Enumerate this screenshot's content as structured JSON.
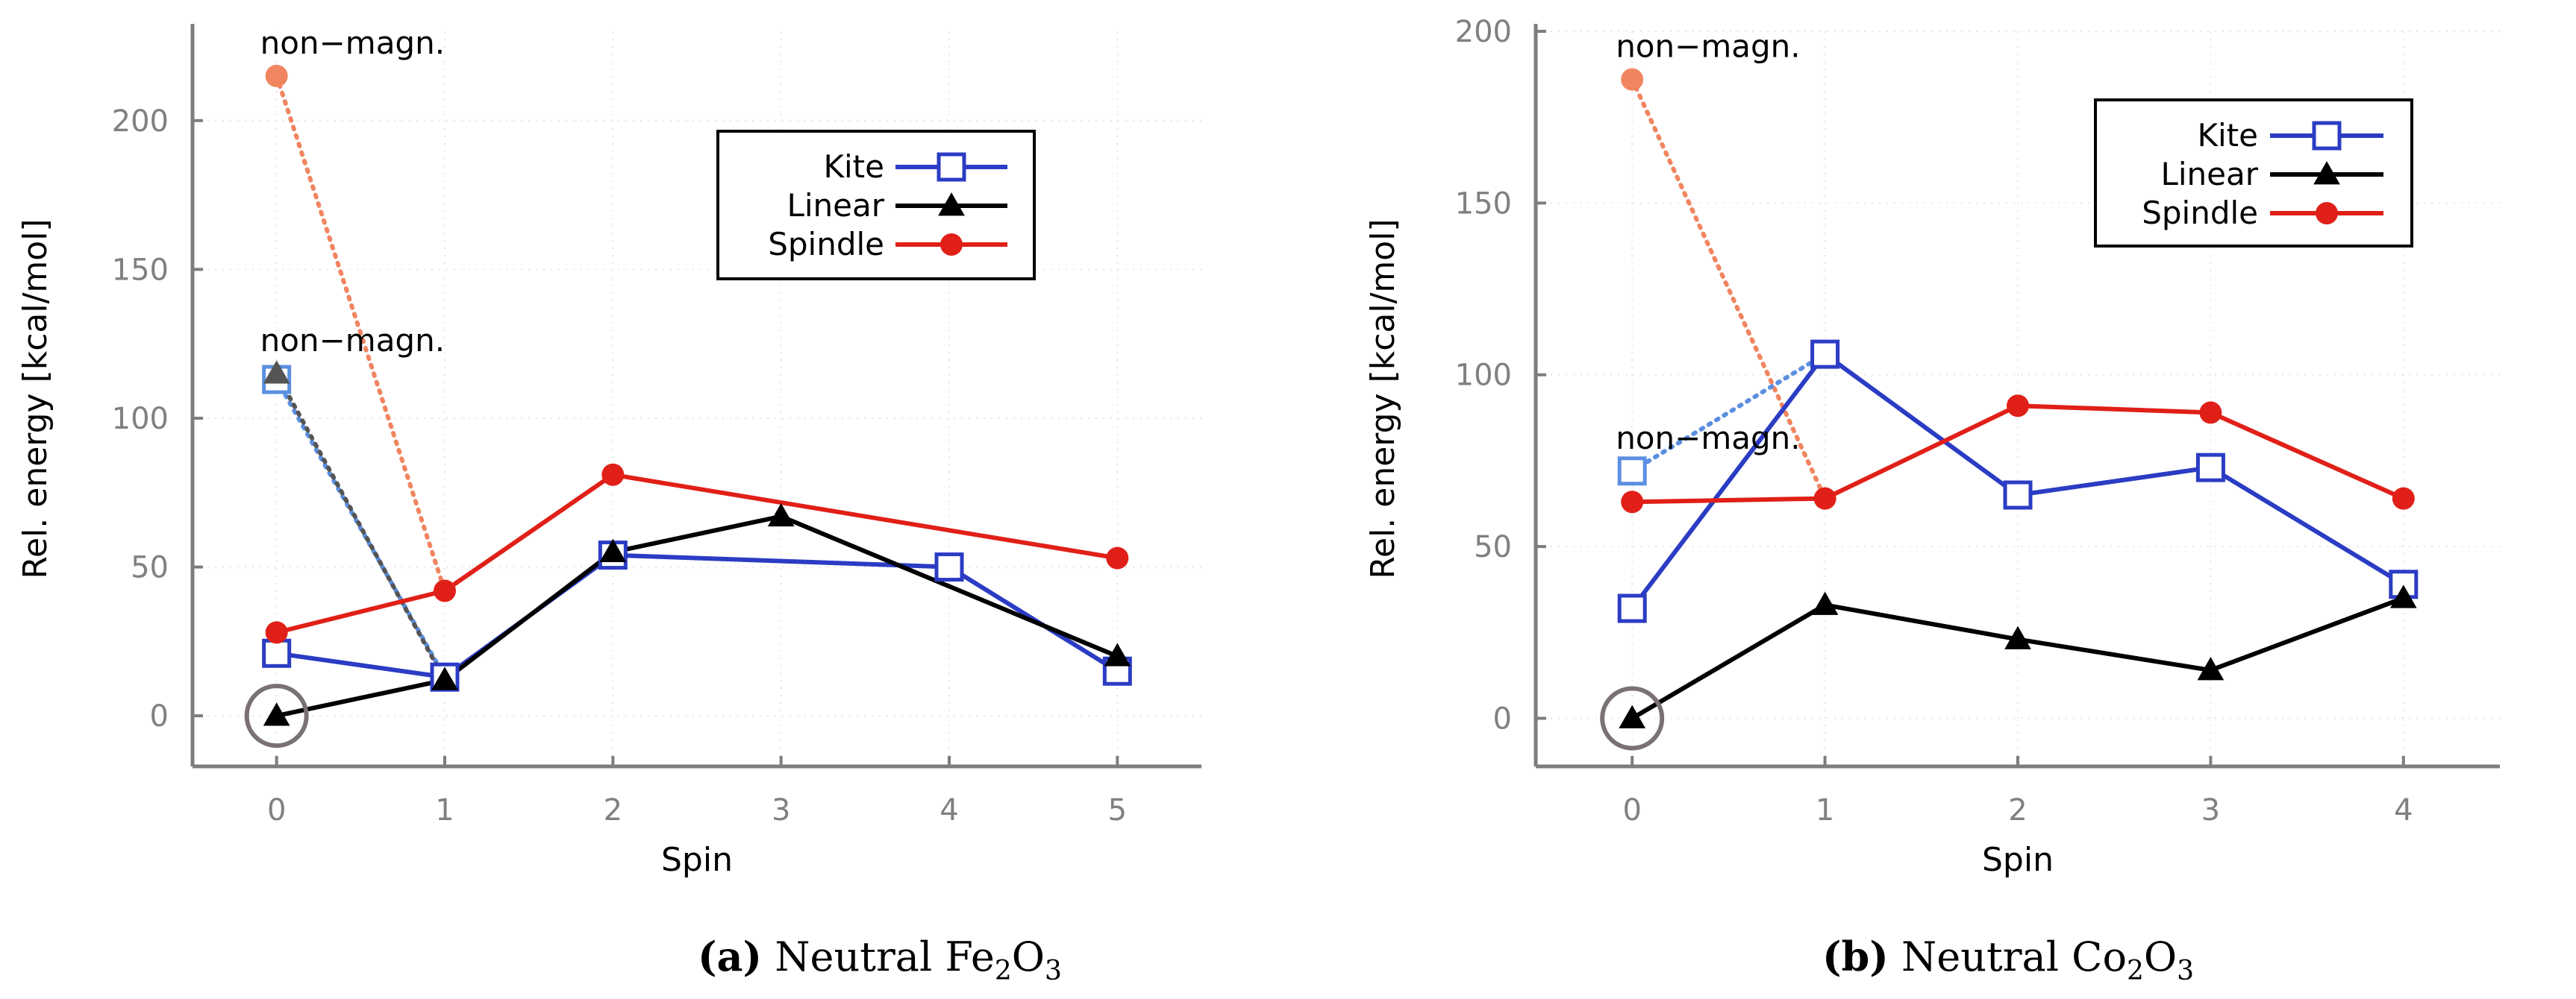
{
  "chart_data": [
    {
      "id": "a",
      "type": "line",
      "caption_label": "(a)",
      "caption_text": "Neutral Fe",
      "caption_parts": [
        "2",
        "O",
        "3"
      ],
      "xlabel": "Spin",
      "ylabel": "Rel. energy [kcal/mol]",
      "xlim": [
        -0.5,
        5.5
      ],
      "ylim": [
        -17,
        230
      ],
      "xticks": [
        0,
        1,
        2,
        3,
        4,
        5
      ],
      "yticks": [
        0,
        50,
        100,
        150,
        200
      ],
      "legend_position": "top-right",
      "series": [
        {
          "name": "Kite",
          "color": "#2b3cc4",
          "marker": "square",
          "points": [
            [
              0,
              21
            ],
            [
              1,
              13
            ],
            [
              2,
              54
            ],
            [
              4,
              50
            ],
            [
              5,
              15
            ]
          ]
        },
        {
          "name": "Linear",
          "color": "#000000",
          "marker": "triangle",
          "points": [
            [
              0,
              0
            ],
            [
              1,
              12
            ],
            [
              2,
              55
            ],
            [
              3,
              67
            ],
            [
              5,
              20
            ]
          ]
        },
        {
          "name": "Spindle",
          "color": "#e02018",
          "marker": "circle",
          "points": [
            [
              0,
              28
            ],
            [
              1,
              42
            ],
            [
              2,
              81
            ],
            [
              5,
              53
            ]
          ]
        }
      ],
      "nonmagnetic": [
        {
          "color": "#f08560",
          "marker": "circle",
          "from": [
            0,
            215
          ],
          "to": [
            1,
            42
          ]
        },
        {
          "color": "#5b8fe0",
          "marker": "square",
          "from": [
            0,
            113
          ],
          "to": [
            1,
            13
          ]
        },
        {
          "color": "#555555",
          "marker": "triangle",
          "from": [
            0,
            115
          ],
          "to": [
            1,
            12
          ]
        }
      ],
      "annotations": [
        {
          "text": "non−magn.",
          "x": 0,
          "y": 215
        },
        {
          "text": "non−magn.",
          "x": 0,
          "y": 115
        }
      ],
      "highlight": {
        "x": 0,
        "y": 0,
        "color": "#7a7272"
      }
    },
    {
      "id": "b",
      "type": "line",
      "caption_label": "(b)",
      "caption_text": "Neutral Co",
      "caption_parts": [
        "2",
        "O",
        "3"
      ],
      "xlabel": "Spin",
      "ylabel": "Rel. energy [kcal/mol]",
      "xlim": [
        -0.5,
        4.5
      ],
      "ylim": [
        -14,
        200
      ],
      "xticks": [
        0,
        1,
        2,
        3,
        4
      ],
      "yticks": [
        0,
        50,
        100,
        150,
        200
      ],
      "legend_position": "top-right",
      "series": [
        {
          "name": "Kite",
          "color": "#2b3cc4",
          "marker": "square",
          "points": [
            [
              0,
              32
            ],
            [
              1,
              106
            ],
            [
              2,
              65
            ],
            [
              3,
              73
            ],
            [
              4,
              39
            ]
          ]
        },
        {
          "name": "Linear",
          "color": "#000000",
          "marker": "triangle",
          "points": [
            [
              0,
              0
            ],
            [
              1,
              33
            ],
            [
              2,
              23
            ],
            [
              3,
              14
            ],
            [
              4,
              35
            ]
          ]
        },
        {
          "name": "Spindle",
          "color": "#e02018",
          "marker": "circle",
          "points": [
            [
              0,
              63
            ],
            [
              1,
              64
            ],
            [
              2,
              91
            ],
            [
              3,
              89
            ],
            [
              4,
              64
            ]
          ]
        }
      ],
      "nonmagnetic": [
        {
          "color": "#f08560",
          "marker": "circle",
          "from": [
            0,
            186
          ],
          "to": [
            1,
            64
          ]
        },
        {
          "color": "#5b8fe0",
          "marker": "square",
          "from": [
            0,
            72
          ],
          "to": [
            1,
            106
          ]
        }
      ],
      "annotations": [
        {
          "text": "non−magn.",
          "x": 0,
          "y": 186
        },
        {
          "text": "non−magn.",
          "x": 0,
          "y": 72
        }
      ],
      "highlight": {
        "x": 0,
        "y": 0,
        "color": "#7a7272"
      }
    }
  ]
}
